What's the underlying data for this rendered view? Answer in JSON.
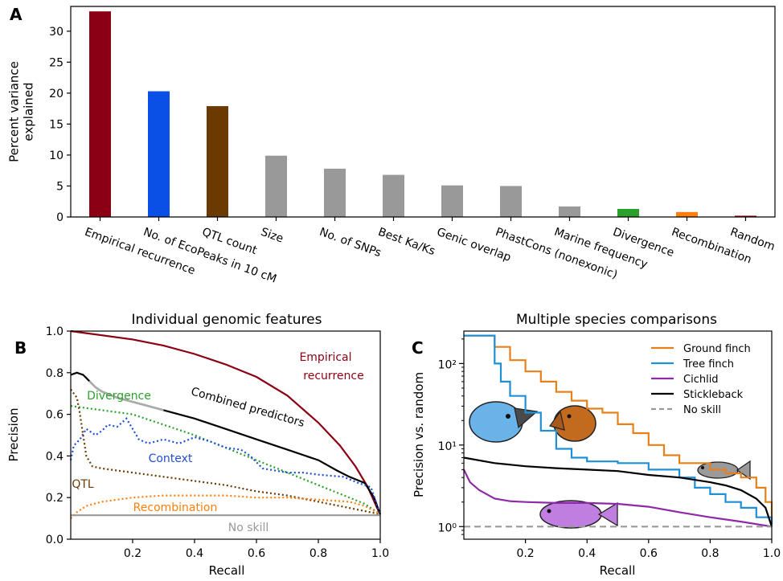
{
  "panels": {
    "a": {
      "letter": "A"
    },
    "b": {
      "letter": "B"
    },
    "c": {
      "letter": "C"
    }
  },
  "chart_data": [
    {
      "id": "a",
      "type": "bar",
      "title": "",
      "ylabel": "Percent variance explained",
      "ylim": [
        0,
        34
      ],
      "yticks": [
        0,
        5,
        10,
        15,
        20,
        25,
        30
      ],
      "categories": [
        "Empirical recurrence",
        "No. of EcoPeaks in 10 cM",
        "QTL count",
        "Size",
        "No. of SNPs",
        "Best Ka/Ks",
        "Genic overlap",
        "PhastCons (nonexonic)",
        "Marine frequency",
        "Divergence",
        "Recombination",
        "Random"
      ],
      "values": [
        33.2,
        20.3,
        17.9,
        9.9,
        7.8,
        6.8,
        5.1,
        5.0,
        1.7,
        1.3,
        0.8,
        0.2
      ],
      "colors": [
        "#8b0012",
        "#0a50e6",
        "#6a3a00",
        "#999999",
        "#999999",
        "#999999",
        "#999999",
        "#999999",
        "#999999",
        "#2ca02c",
        "#ff7f0e",
        "#8b0012"
      ]
    },
    {
      "id": "b",
      "type": "line",
      "title": "Individual genomic features",
      "xlabel": "Recall",
      "ylabel": "Precision",
      "xlim": [
        0,
        1
      ],
      "ylim": [
        0,
        1
      ],
      "xticks": [
        "0.2",
        "0.4",
        "0.6",
        "0.8",
        "1.0"
      ],
      "yticks": [
        "0.0",
        "0.2",
        "0.4",
        "0.6",
        "0.8",
        "1.0"
      ],
      "series": [
        {
          "name": "Empirical recurrence",
          "color": "#8b0012",
          "style": "solid",
          "points": [
            [
              0,
              1
            ],
            [
              0.05,
              0.99
            ],
            [
              0.1,
              0.98
            ],
            [
              0.2,
              0.96
            ],
            [
              0.3,
              0.93
            ],
            [
              0.4,
              0.89
            ],
            [
              0.5,
              0.84
            ],
            [
              0.6,
              0.78
            ],
            [
              0.7,
              0.69
            ],
            [
              0.8,
              0.56
            ],
            [
              0.87,
              0.45
            ],
            [
              0.92,
              0.35
            ],
            [
              0.96,
              0.25
            ],
            [
              0.99,
              0.15
            ],
            [
              1,
              0.12
            ]
          ]
        },
        {
          "name": "Combined predictors",
          "color": "#000000",
          "style": "solid",
          "points": [
            [
              0,
              0.79
            ],
            [
              0.02,
              0.8
            ],
            [
              0.04,
              0.79
            ],
            [
              0.06,
              0.76
            ],
            [
              0.08,
              0.73
            ],
            [
              0.1,
              0.71
            ],
            [
              0.15,
              0.68
            ],
            [
              0.2,
              0.66
            ],
            [
              0.25,
              0.64
            ],
            [
              0.3,
              0.62
            ],
            [
              0.4,
              0.58
            ],
            [
              0.5,
              0.53
            ],
            [
              0.6,
              0.48
            ],
            [
              0.7,
              0.43
            ],
            [
              0.8,
              0.38
            ],
            [
              0.86,
              0.33
            ],
            [
              0.9,
              0.3
            ],
            [
              0.95,
              0.27
            ],
            [
              0.98,
              0.2
            ],
            [
              1,
              0.12
            ]
          ]
        },
        {
          "name": "Divergence",
          "color": "#2ca02c",
          "style": "dotted",
          "points": [
            [
              0,
              0.64
            ],
            [
              0.05,
              0.63
            ],
            [
              0.1,
              0.62
            ],
            [
              0.2,
              0.6
            ],
            [
              0.3,
              0.55
            ],
            [
              0.4,
              0.5
            ],
            [
              0.5,
              0.44
            ],
            [
              0.6,
              0.38
            ],
            [
              0.7,
              0.32
            ],
            [
              0.8,
              0.26
            ],
            [
              0.9,
              0.2
            ],
            [
              0.95,
              0.17
            ],
            [
              1,
              0.12
            ]
          ]
        },
        {
          "name": "Context",
          "color": "#1f4fd6",
          "style": "dotted",
          "points": [
            [
              0,
              0.38
            ],
            [
              0.01,
              0.45
            ],
            [
              0.03,
              0.48
            ],
            [
              0.05,
              0.53
            ],
            [
              0.08,
              0.5
            ],
            [
              0.1,
              0.52
            ],
            [
              0.12,
              0.55
            ],
            [
              0.15,
              0.54
            ],
            [
              0.18,
              0.58
            ],
            [
              0.2,
              0.53
            ],
            [
              0.22,
              0.48
            ],
            [
              0.25,
              0.46
            ],
            [
              0.3,
              0.48
            ],
            [
              0.35,
              0.46
            ],
            [
              0.4,
              0.49
            ],
            [
              0.45,
              0.47
            ],
            [
              0.5,
              0.44
            ],
            [
              0.55,
              0.43
            ],
            [
              0.58,
              0.4
            ],
            [
              0.62,
              0.34
            ],
            [
              0.7,
              0.32
            ],
            [
              0.75,
              0.32
            ],
            [
              0.8,
              0.31
            ],
            [
              0.88,
              0.3
            ],
            [
              0.93,
              0.27
            ],
            [
              0.97,
              0.25
            ],
            [
              1,
              0.12
            ]
          ]
        },
        {
          "name": "QTL",
          "color": "#6a3a00",
          "style": "dotted",
          "points": [
            [
              0,
              0.72
            ],
            [
              0.02,
              0.68
            ],
            [
              0.03,
              0.6
            ],
            [
              0.04,
              0.5
            ],
            [
              0.05,
              0.4
            ],
            [
              0.07,
              0.35
            ],
            [
              0.1,
              0.34
            ],
            [
              0.2,
              0.32
            ],
            [
              0.3,
              0.3
            ],
            [
              0.4,
              0.28
            ],
            [
              0.5,
              0.26
            ],
            [
              0.6,
              0.23
            ],
            [
              0.7,
              0.21
            ],
            [
              0.8,
              0.18
            ],
            [
              0.9,
              0.15
            ],
            [
              1,
              0.12
            ]
          ]
        },
        {
          "name": "Recombination",
          "color": "#ff7f0e",
          "style": "dotted",
          "points": [
            [
              0,
              0.1
            ],
            [
              0.02,
              0.13
            ],
            [
              0.05,
              0.16
            ],
            [
              0.1,
              0.18
            ],
            [
              0.2,
              0.2
            ],
            [
              0.3,
              0.21
            ],
            [
              0.4,
              0.21
            ],
            [
              0.5,
              0.21
            ],
            [
              0.6,
              0.2
            ],
            [
              0.7,
              0.2
            ],
            [
              0.8,
              0.19
            ],
            [
              0.9,
              0.18
            ],
            [
              0.95,
              0.16
            ],
            [
              1,
              0.12
            ]
          ]
        },
        {
          "name": "No skill",
          "color": "#999999",
          "style": "solid",
          "points": [
            [
              0,
              0.115
            ],
            [
              1,
              0.115
            ]
          ]
        }
      ],
      "labels": [
        "Empirical recurrence",
        "Divergence",
        "Combined predictors",
        "Context",
        "QTL",
        "Recombination",
        "No skill"
      ]
    },
    {
      "id": "c",
      "type": "line",
      "title": "Multiple species comparisons",
      "xlabel": "Recall",
      "ylabel": "Precision vs. random",
      "yscale": "log",
      "xlim": [
        0,
        1
      ],
      "ylim": [
        0.7,
        250
      ],
      "xticks": [
        "0.2",
        "0.4",
        "0.6",
        "0.8",
        "1.0"
      ],
      "legend": "top-right",
      "series": [
        {
          "name": "Ground finch",
          "color": "#e8801a",
          "style": "step",
          "points": [
            [
              0,
              220
            ],
            [
              0.08,
              220
            ],
            [
              0.1,
              160
            ],
            [
              0.15,
              110
            ],
            [
              0.2,
              80
            ],
            [
              0.25,
              60
            ],
            [
              0.3,
              45
            ],
            [
              0.35,
              35
            ],
            [
              0.4,
              28
            ],
            [
              0.45,
              25
            ],
            [
              0.5,
              18
            ],
            [
              0.55,
              14
            ],
            [
              0.6,
              10
            ],
            [
              0.65,
              7.5
            ],
            [
              0.7,
              6
            ],
            [
              0.8,
              5
            ],
            [
              0.85,
              4.5
            ],
            [
              0.9,
              4
            ],
            [
              0.95,
              3
            ],
            [
              0.98,
              2
            ],
            [
              1,
              1.1
            ]
          ]
        },
        {
          "name": "Tree finch",
          "color": "#1f8fd6",
          "style": "step",
          "points": [
            [
              0,
              220
            ],
            [
              0.08,
              220
            ],
            [
              0.1,
              100
            ],
            [
              0.12,
              60
            ],
            [
              0.15,
              40
            ],
            [
              0.2,
              25
            ],
            [
              0.25,
              15
            ],
            [
              0.3,
              9
            ],
            [
              0.35,
              7
            ],
            [
              0.4,
              6.3
            ],
            [
              0.5,
              6
            ],
            [
              0.6,
              5
            ],
            [
              0.7,
              4
            ],
            [
              0.75,
              3
            ],
            [
              0.8,
              2.5
            ],
            [
              0.85,
              2
            ],
            [
              0.9,
              1.7
            ],
            [
              0.95,
              1.3
            ],
            [
              1,
              1.05
            ]
          ]
        },
        {
          "name": "Cichlid",
          "color": "#8e2aa8",
          "style": "solid",
          "points": [
            [
              0,
              5
            ],
            [
              0.02,
              3.5
            ],
            [
              0.05,
              2.8
            ],
            [
              0.1,
              2.2
            ],
            [
              0.15,
              2.05
            ],
            [
              0.2,
              2
            ],
            [
              0.3,
              1.95
            ],
            [
              0.4,
              1.95
            ],
            [
              0.5,
              1.9
            ],
            [
              0.6,
              1.75
            ],
            [
              0.7,
              1.5
            ],
            [
              0.8,
              1.3
            ],
            [
              0.9,
              1.15
            ],
            [
              1,
              1.0
            ]
          ]
        },
        {
          "name": "Stickleback",
          "color": "#000000",
          "style": "solid",
          "points": [
            [
              0,
              7
            ],
            [
              0.1,
              6
            ],
            [
              0.2,
              5.5
            ],
            [
              0.3,
              5.2
            ],
            [
              0.4,
              5
            ],
            [
              0.5,
              4.8
            ],
            [
              0.6,
              4.3
            ],
            [
              0.7,
              4
            ],
            [
              0.8,
              3.5
            ],
            [
              0.85,
              3.2
            ],
            [
              0.9,
              2.8
            ],
            [
              0.95,
              2.2
            ],
            [
              0.98,
              1.7
            ],
            [
              1,
              1.0
            ]
          ]
        },
        {
          "name": "No skill",
          "color": "#999999",
          "style": "dashed",
          "points": [
            [
              0,
              1
            ],
            [
              1,
              1
            ]
          ]
        }
      ],
      "yticks": [
        "10⁰",
        "10¹",
        "10²"
      ]
    }
  ]
}
